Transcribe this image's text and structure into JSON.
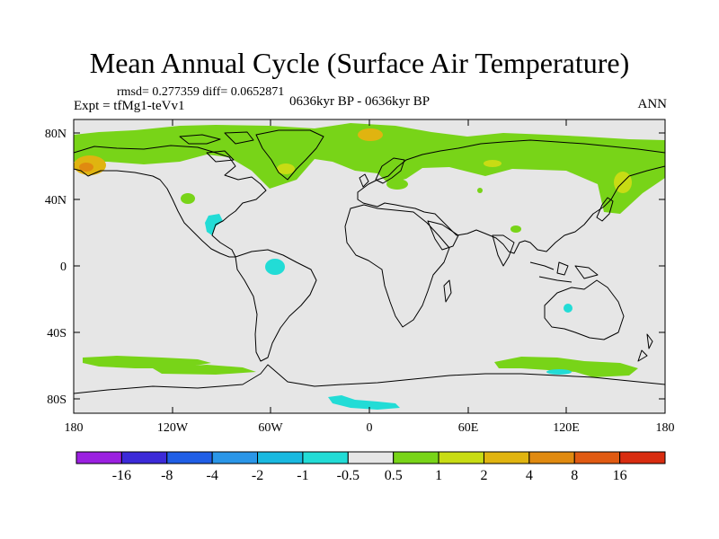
{
  "title": "Mean Annual Cycle (Surface Air Temperature)",
  "stats": "rmsd= 0.277359 diff= 0.0652871",
  "experiment": "Expt = tfMg1-teVv1",
  "period": "0636kyr BP - 0636kyr BP",
  "season": "ANN",
  "axes": {
    "lat_labels": [
      "80N",
      "40N",
      "0",
      "40S",
      "80S"
    ],
    "lon_labels": [
      "180",
      "120W",
      "60W",
      "0",
      "60E",
      "120E",
      "180"
    ]
  },
  "colorbar": {
    "labels": [
      "-16",
      "-8",
      "-4",
      "-2",
      "-1",
      "-0.5",
      "0.5",
      "1",
      "2",
      "4",
      "8",
      "16"
    ],
    "colors": [
      "#9b20e0",
      "#3c2ad8",
      "#1f5ee6",
      "#2a96e8",
      "#19b9e0",
      "#22dcd6",
      "#e6e6e6",
      "#78d418",
      "#c8dc14",
      "#e0b410",
      "#e08a10",
      "#e05a12",
      "#d82c10"
    ]
  },
  "map_colors": {
    "background": "#e6e6e6",
    "warm_1": "#78d418",
    "warm_2": "#c8dc14",
    "warm_3": "#e0b410",
    "cool_1": "#22dcd6",
    "coast": "#000000"
  }
}
